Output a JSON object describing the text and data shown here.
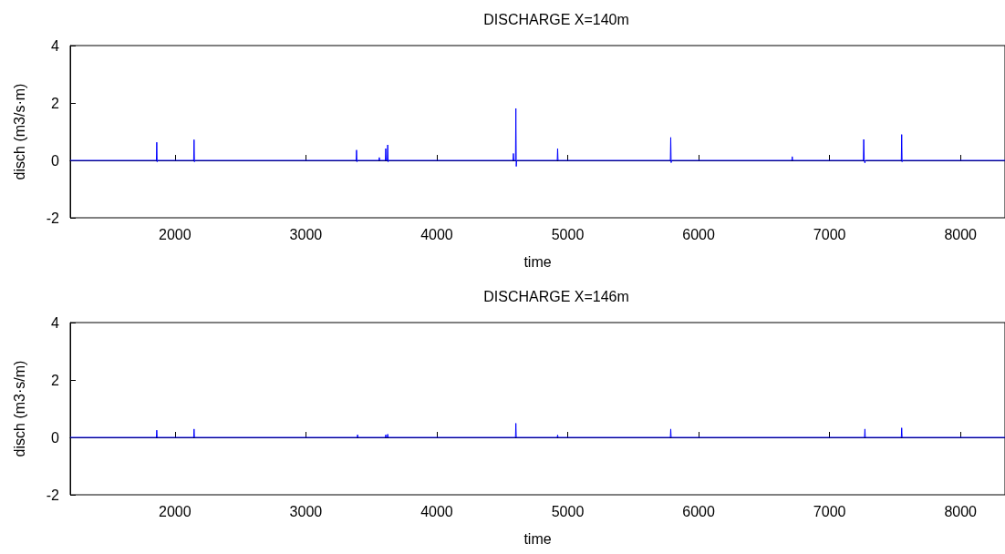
{
  "chart_data": [
    {
      "type": "line",
      "title": "DISCHARGE X=140m",
      "xlabel": "time",
      "ylabel": "disch (m3/s·m)",
      "xlim": [
        1200,
        8340
      ],
      "ylim": [
        -2,
        4
      ],
      "xticks": [
        2000,
        3000,
        4000,
        5000,
        6000,
        7000,
        8000
      ],
      "yticks": [
        -2,
        0,
        2,
        4
      ],
      "series": [
        {
          "color": "#0000ff",
          "x": [
            1200,
            1858,
            1861,
            1864,
            1867,
            2143,
            2146,
            2149,
            2152,
            3384,
            3387,
            3390,
            3393,
            3558,
            3561,
            3564,
            3607,
            3610,
            3613,
            3622,
            3625,
            3628,
            3631,
            4582,
            4585,
            4588,
            4601,
            4604,
            4607,
            4610,
            4920,
            4923,
            4926,
            5784,
            5787,
            5790,
            5793,
            6712,
            6715,
            6718,
            7258,
            7261,
            7265,
            7270,
            7273,
            7548,
            7551,
            7554,
            7557,
            8340
          ],
          "values": [
            0,
            0,
            0.63,
            -0.05,
            0,
            0,
            0.72,
            -0.05,
            0,
            0,
            0.36,
            -0.05,
            0,
            0,
            0.1,
            0,
            0,
            0.41,
            0,
            0,
            0.54,
            -0.05,
            0,
            0,
            0.24,
            0,
            0,
            1.81,
            -0.21,
            0,
            0,
            0.41,
            0,
            0,
            0.8,
            -0.08,
            0,
            0,
            0.13,
            0,
            0,
            0.73,
            0,
            -0.09,
            0,
            0,
            0.9,
            -0.05,
            0,
            0
          ]
        }
      ]
    },
    {
      "type": "line",
      "title": "DISCHARGE X=146m",
      "xlabel": "time",
      "ylabel": "disch (m3·s/m)",
      "xlim": [
        1200,
        8340
      ],
      "ylim": [
        -2,
        4
      ],
      "xticks": [
        2000,
        3000,
        4000,
        5000,
        6000,
        7000,
        8000
      ],
      "yticks": [
        -2,
        0,
        2,
        4
      ],
      "series": [
        {
          "color": "#0000ff",
          "x": [
            1200,
            1858,
            1861,
            1864,
            2143,
            2146,
            2149,
            3392,
            3395,
            3398,
            3607,
            3610,
            3613,
            3622,
            3625,
            3628,
            4601,
            4604,
            4607,
            4920,
            4923,
            4926,
            5784,
            5787,
            5790,
            7267,
            7270,
            7273,
            7548,
            7551,
            7554,
            8340
          ],
          "values": [
            0,
            0,
            0.25,
            0,
            0,
            0.29,
            0,
            0,
            0.09,
            0,
            0,
            0.09,
            0,
            0,
            0.11,
            0,
            0,
            0.49,
            0,
            0,
            0.08,
            0,
            0,
            0.29,
            0,
            0,
            0.29,
            0,
            0,
            0.33,
            0,
            0
          ]
        }
      ]
    }
  ]
}
